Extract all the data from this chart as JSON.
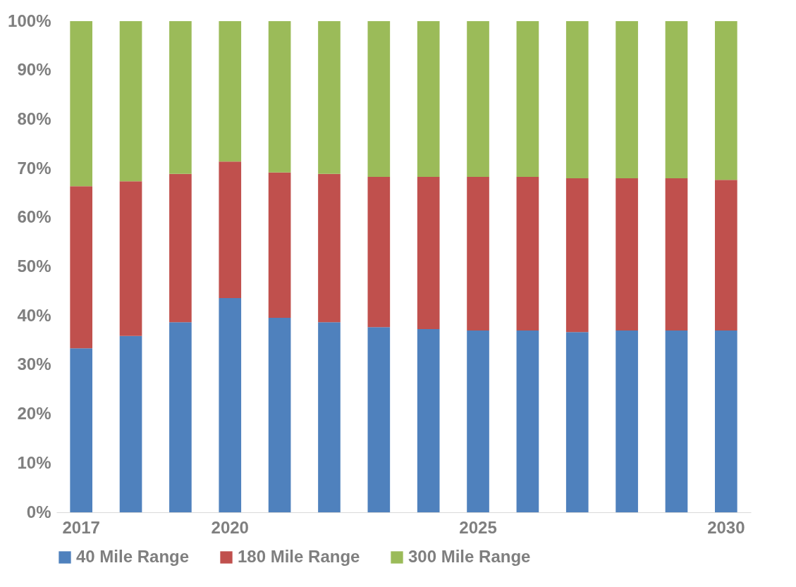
{
  "chart_data": {
    "type": "bar",
    "stacked": true,
    "categories": [
      "2017",
      null,
      null,
      "2020",
      null,
      null,
      null,
      null,
      "2025",
      null,
      null,
      null,
      null,
      "2030"
    ],
    "series": [
      {
        "name": "40 Mile Range",
        "color": "#4f81bd",
        "values": [
          33.4,
          35.9,
          38.7,
          43.6,
          39.6,
          38.7,
          37.7,
          37.3,
          37.0,
          37.0,
          36.7,
          37.0,
          37.0,
          37.0
        ]
      },
      {
        "name": "180 Mile Range",
        "color": "#c0504d",
        "values": [
          33.0,
          31.5,
          30.2,
          27.8,
          29.6,
          30.2,
          30.6,
          31.0,
          31.3,
          31.3,
          31.3,
          31.0,
          31.0,
          30.7
        ]
      },
      {
        "name": "300 Mile Range",
        "color": "#9bbb59",
        "values": [
          33.6,
          32.6,
          31.1,
          28.6,
          30.8,
          31.1,
          31.7,
          31.7,
          31.7,
          31.7,
          32.0,
          32.0,
          32.0,
          32.3
        ]
      }
    ],
    "ylim": [
      0,
      100
    ],
    "yticks": [
      {
        "value": 0,
        "label": "0%"
      },
      {
        "value": 10,
        "label": "10%"
      },
      {
        "value": 20,
        "label": "20%"
      },
      {
        "value": 30,
        "label": "30%"
      },
      {
        "value": 40,
        "label": "40%"
      },
      {
        "value": 50,
        "label": "50%"
      },
      {
        "value": 60,
        "label": "60%"
      },
      {
        "value": 70,
        "label": "70%"
      },
      {
        "value": 80,
        "label": "80%"
      },
      {
        "value": 90,
        "label": "90%"
      },
      {
        "value": 100,
        "label": "100%"
      }
    ],
    "grid": false,
    "legend": "bottom"
  }
}
